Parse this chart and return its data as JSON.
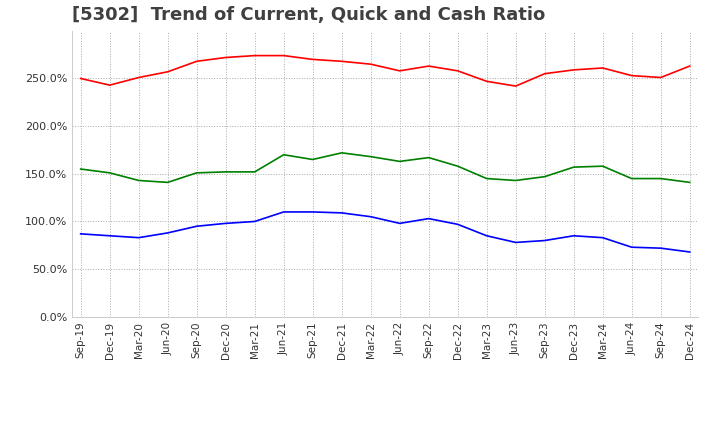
{
  "title": "[5302]  Trend of Current, Quick and Cash Ratio",
  "x_labels": [
    "Sep-19",
    "Dec-19",
    "Mar-20",
    "Jun-20",
    "Sep-20",
    "Dec-20",
    "Mar-21",
    "Jun-21",
    "Sep-21",
    "Dec-21",
    "Mar-22",
    "Jun-22",
    "Sep-22",
    "Dec-22",
    "Mar-23",
    "Jun-23",
    "Sep-23",
    "Dec-23",
    "Mar-24",
    "Jun-24",
    "Sep-24",
    "Dec-24"
  ],
  "current_ratio": [
    250,
    243,
    251,
    257,
    268,
    272,
    274,
    274,
    270,
    268,
    265,
    258,
    263,
    258,
    247,
    242,
    255,
    259,
    261,
    253,
    251,
    263
  ],
  "quick_ratio": [
    155,
    151,
    143,
    141,
    151,
    152,
    152,
    170,
    165,
    172,
    168,
    163,
    167,
    158,
    145,
    143,
    147,
    157,
    158,
    145,
    145,
    141
  ],
  "cash_ratio": [
    87,
    85,
    83,
    88,
    95,
    98,
    100,
    110,
    110,
    109,
    105,
    98,
    103,
    97,
    85,
    78,
    80,
    85,
    83,
    73,
    72,
    68
  ],
  "ylim": [
    0,
    300
  ],
  "yticks": [
    0,
    50,
    100,
    150,
    200,
    250
  ],
  "current_color": "#ff0000",
  "quick_color": "#008000",
  "cash_color": "#0000ff",
  "background_color": "#ffffff",
  "grid_color": "#aaaaaa",
  "title_color": "#404040",
  "title_fontsize": 13,
  "line_width": 1.2
}
